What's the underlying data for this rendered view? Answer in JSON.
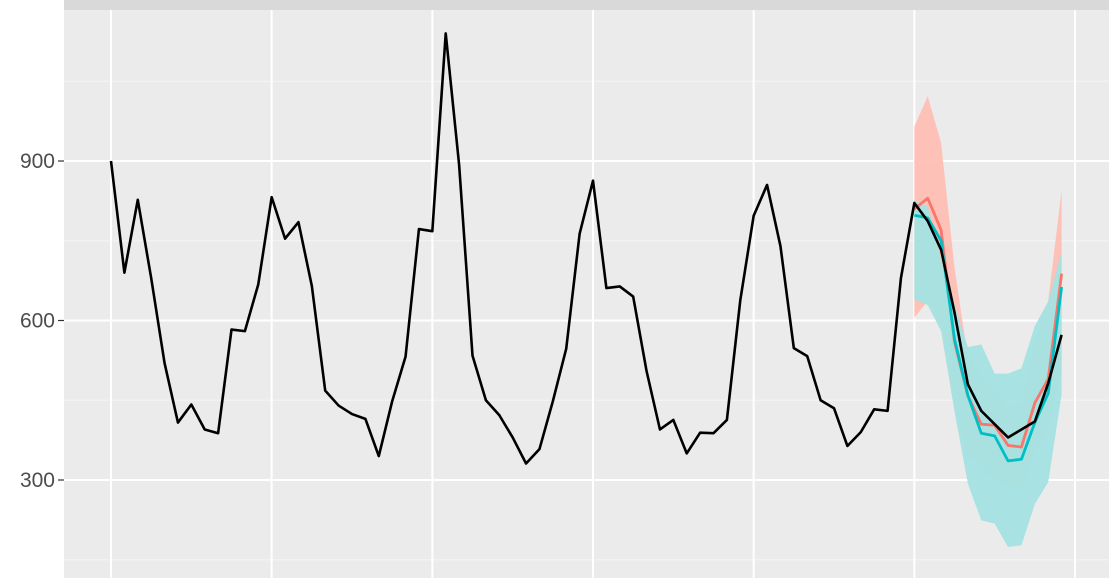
{
  "chart_data": {
    "type": "line",
    "title": "",
    "xlabel": "",
    "ylabel": "",
    "x_index_range": [
      0,
      73
    ],
    "ylim": [
      148,
      1148
    ],
    "y_ticks": [
      300,
      600,
      900
    ],
    "y_tick_labels": [
      "300",
      "600",
      "900"
    ],
    "x_gridlines_at_index": [
      0,
      12,
      24,
      36,
      48,
      60,
      72
    ],
    "x_tick_labels": [],
    "grid": true,
    "legend": "none",
    "series": [
      {
        "role": "observed",
        "color": "#000000",
        "x": [
          0,
          1,
          2,
          3,
          4,
          5,
          6,
          7,
          8,
          9,
          10,
          11,
          12,
          13,
          14,
          15,
          16,
          17,
          18,
          19,
          20,
          21,
          22,
          23,
          24,
          25,
          26,
          27,
          28,
          29,
          30,
          31,
          32,
          33,
          34,
          35,
          36,
          37,
          38,
          39,
          40,
          41,
          42,
          43,
          44,
          45,
          46,
          47,
          48,
          49,
          50,
          51,
          52,
          53,
          54,
          55,
          56,
          57,
          58,
          59,
          60,
          61,
          62,
          63,
          64,
          65,
          66,
          67,
          68,
          69,
          70,
          71
        ],
        "values": [
          900,
          690,
          827,
          680,
          520,
          408,
          442,
          395,
          388,
          583,
          580,
          668,
          832,
          754,
          785,
          665,
          468,
          440,
          424,
          415,
          345,
          448,
          532,
          772,
          768,
          1140,
          893,
          534,
          450,
          422,
          380,
          331,
          358,
          448,
          547,
          763,
          863,
          661,
          664,
          645,
          505,
          395,
          413,
          350,
          389,
          388,
          413,
          638,
          797,
          855,
          740,
          548,
          533,
          450,
          435,
          364,
          390,
          433,
          430,
          680,
          821,
          787,
          733,
          615,
          480,
          430,
          405,
          380,
          395,
          410,
          482,
          573
        ]
      },
      {
        "role": "forecast",
        "color": "#f8766d",
        "band_color": "#ffbfb5",
        "x": [
          60,
          61,
          62,
          63,
          64,
          65,
          66,
          67,
          68,
          69,
          70,
          71
        ],
        "values": [
          810,
          830,
          770,
          560,
          458,
          405,
          403,
          365,
          362,
          445,
          490,
          688
        ],
        "lower": [
          605,
          637,
          596,
          440,
          345,
          330,
          300,
          289,
          283,
          355,
          392,
          509
        ],
        "upper": [
          965,
          1022,
          934,
          700,
          530,
          495,
          470,
          440,
          443,
          560,
          637,
          845
        ]
      },
      {
        "role": "forecast",
        "color": "#00bfc4",
        "band_color": "#a4e1e2",
        "x": [
          60,
          61,
          62,
          63,
          64,
          65,
          66,
          67,
          68,
          69,
          70,
          71
        ],
        "values": [
          798,
          793,
          750,
          565,
          459,
          388,
          383,
          336,
          339,
          408,
          463,
          663
        ],
        "lower": [
          640,
          629,
          580,
          429,
          293,
          224,
          218,
          174,
          177,
          255,
          296,
          461
        ],
        "upper": [
          826,
          815,
          715,
          630,
          550,
          555,
          500,
          500,
          510,
          590,
          636,
          730
        ]
      }
    ]
  }
}
